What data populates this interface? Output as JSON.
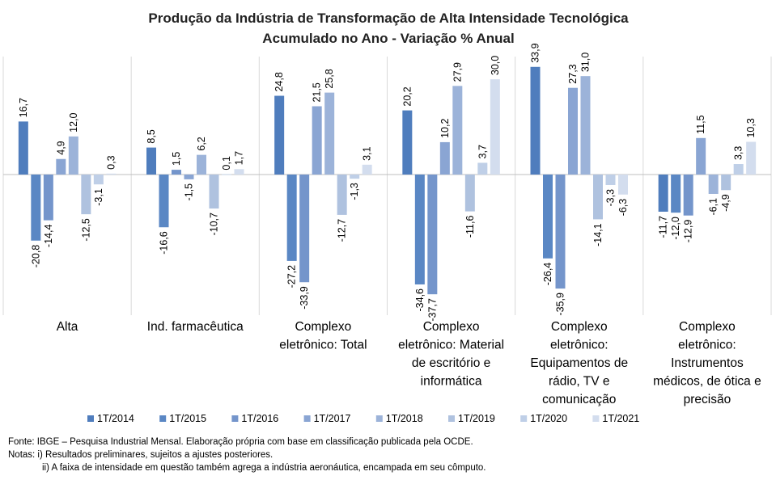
{
  "chart_data": {
    "type": "bar",
    "title": "Produção da Indústria de Transformação de Alta Intensidade Tecnológica",
    "subtitle": "Acumulado no Ano - Variação % Anual",
    "categories": [
      [
        "Alta"
      ],
      [
        "Ind. farmacêutica"
      ],
      [
        "Complexo",
        "eletrônico: Total"
      ],
      [
        "Complexo",
        "eletrônico: Material",
        "de escritório e",
        "informática"
      ],
      [
        "Complexo",
        "eletrônico:",
        "Equipamentos de",
        "rádio, TV e",
        "comunicação"
      ],
      [
        "Complexo",
        "eletrônico:",
        "Instrumentos",
        "médicos, de ótica e",
        "precisão"
      ]
    ],
    "series": [
      {
        "name": "1T/2014",
        "color": "#4f7dbd",
        "values": [
          16.7,
          8.5,
          24.8,
          20.2,
          33.9,
          -11.7
        ]
      },
      {
        "name": "1T/2015",
        "color": "#5a87c4",
        "values": [
          -20.8,
          -16.6,
          -27.2,
          -34.6,
          -26.4,
          -12.0
        ]
      },
      {
        "name": "1T/2016",
        "color": "#7495cb",
        "values": [
          -14.4,
          1.5,
          -33.9,
          -37.7,
          -35.9,
          -12.9
        ]
      },
      {
        "name": "1T/2017",
        "color": "#8aa5d3",
        "values": [
          4.9,
          -1.5,
          21.5,
          10.2,
          27.3,
          11.5
        ]
      },
      {
        "name": "1T/2018",
        "color": "#9cb3d9",
        "values": [
          12.0,
          6.2,
          25.8,
          27.9,
          31.0,
          -6.1
        ]
      },
      {
        "name": "1T/2019",
        "color": "#afc2df",
        "values": [
          -12.5,
          -10.7,
          -12.7,
          -11.6,
          -14.1,
          -4.9
        ]
      },
      {
        "name": "1T/2020",
        "color": "#bfcfe7",
        "values": [
          -3.1,
          0.1,
          -1.3,
          3.7,
          -3.3,
          3.3
        ]
      },
      {
        "name": "1T/2021",
        "color": "#d3ddee",
        "values": [
          0.3,
          1.7,
          3.1,
          30.0,
          -6.3,
          10.3
        ]
      }
    ],
    "labels": [
      [
        "16,7",
        "8,5",
        "24,8",
        "20,2",
        "33,9",
        "-11,7"
      ],
      [
        "-20,8",
        "-16,6",
        "-27,2",
        "-34,6",
        "-26,4",
        "-12,0"
      ],
      [
        "-14,4",
        "1,5",
        "-33,9",
        "-37,7",
        "-35,9",
        "-12,9"
      ],
      [
        "4,9",
        "-1,5",
        "21,5",
        "10,2",
        "27,3",
        "11,5"
      ],
      [
        "12,0",
        "6,2",
        "25,8",
        "27,9",
        "31,0",
        "-6,1"
      ],
      [
        "-12,5",
        "-10,7",
        "-12,7",
        "-11,6",
        "-14,1",
        "-4,9"
      ],
      [
        "-3,1",
        "0,1",
        "-1,3",
        "3,7",
        "-3,3",
        "3,3"
      ],
      [
        "0,3",
        "1,7",
        "3,1",
        "30,0",
        "-6,3",
        "10,3"
      ]
    ],
    "ylim": [
      -40,
      35
    ],
    "grid": false,
    "legend_position": "bottom"
  },
  "notes": {
    "source": "Fonte: IBGE – Pesquisa Industrial Mensal. Elaboração própria com base em classificação publicada pela OCDE.",
    "note1": "Notas: i) Resultados preliminares, sujeitos a ajustes posteriores.",
    "note2": "ii) A faixa de intensidade em questão também agrega a indústria aeronáutica, encampada em seu cômputo."
  }
}
